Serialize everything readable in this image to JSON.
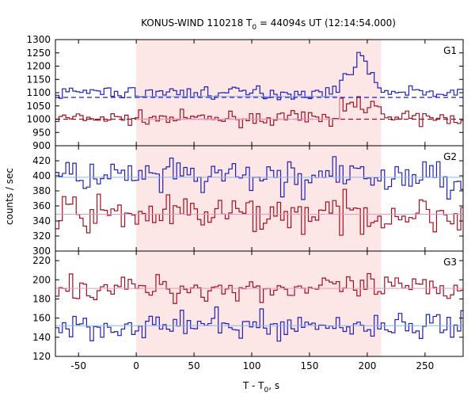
{
  "figure": {
    "title_main": "KONUS-WIND 110218 T",
    "title_sub": "0",
    "title_tail": " = 44094s UT (12:14:54.000)",
    "ylabel": "counts / sec",
    "xlabel_main": "T - T",
    "xlabel_sub": "0",
    "xlabel_tail": ", s"
  },
  "chart_data": {
    "type": "line",
    "step": true,
    "x_range": [
      -70,
      283
    ],
    "x_ticks": [
      -50,
      0,
      50,
      100,
      150,
      200,
      250
    ],
    "shaded_interval": [
      0,
      212
    ],
    "shade_color": "#fde6e6",
    "panels": [
      {
        "label": "G1",
        "ylim": [
          900,
          1300
        ],
        "y_ticks": [
          900,
          950,
          1000,
          1050,
          1100,
          1150,
          1200,
          1250,
          1300
        ],
        "blue_color": "#1f1fb8",
        "red_color": "#a01020",
        "blue_mean": 1100,
        "red_mean": 1003,
        "blue_bg": 1082,
        "red_bg": 1000,
        "burst": {
          "start": 175,
          "end": 212,
          "blue_rise": [
            [
              175,
              1150
            ],
            [
              178,
              1165
            ],
            [
              181,
              1170
            ],
            [
              184,
              1175
            ],
            [
              187,
              1190
            ],
            [
              190,
              1250
            ],
            [
              193,
              1240
            ],
            [
              196,
              1215
            ],
            [
              200,
              1175
            ],
            [
              204,
              1140
            ],
            [
              208,
              1120
            ],
            [
              212,
              1100
            ]
          ],
          "red_rise": [
            [
              175,
              1080
            ],
            [
              178,
              1030
            ],
            [
              182,
              1060
            ],
            [
              186,
              1040
            ],
            [
              190,
              1085
            ],
            [
              194,
              1030
            ],
            [
              198,
              1040
            ],
            [
              202,
              1060
            ],
            [
              206,
              1050
            ],
            [
              210,
              1020
            ]
          ]
        },
        "blue_noise": 12,
        "red_noise": 12
      },
      {
        "label": "G2",
        "ylim": [
          300,
          440
        ],
        "y_ticks": [
          300,
          320,
          340,
          360,
          380,
          400,
          420
        ],
        "blue_color": "#1f1fb8",
        "red_color": "#a01020",
        "blue_mean": 398,
        "red_mean": 349,
        "blue_bg": 398,
        "red_bg": 349,
        "blue_noise": 12,
        "red_noise": 12
      },
      {
        "label": "G3",
        "ylim": [
          120,
          230
        ],
        "y_ticks": [
          120,
          140,
          160,
          180,
          200,
          220
        ],
        "blue_color": "#1f1fb8",
        "red_color": "#a01020",
        "blue_mean": 152,
        "red_mean": 191,
        "blue_bg": 152,
        "red_bg": 191,
        "blue_noise": 7,
        "red_noise": 7
      }
    ]
  }
}
